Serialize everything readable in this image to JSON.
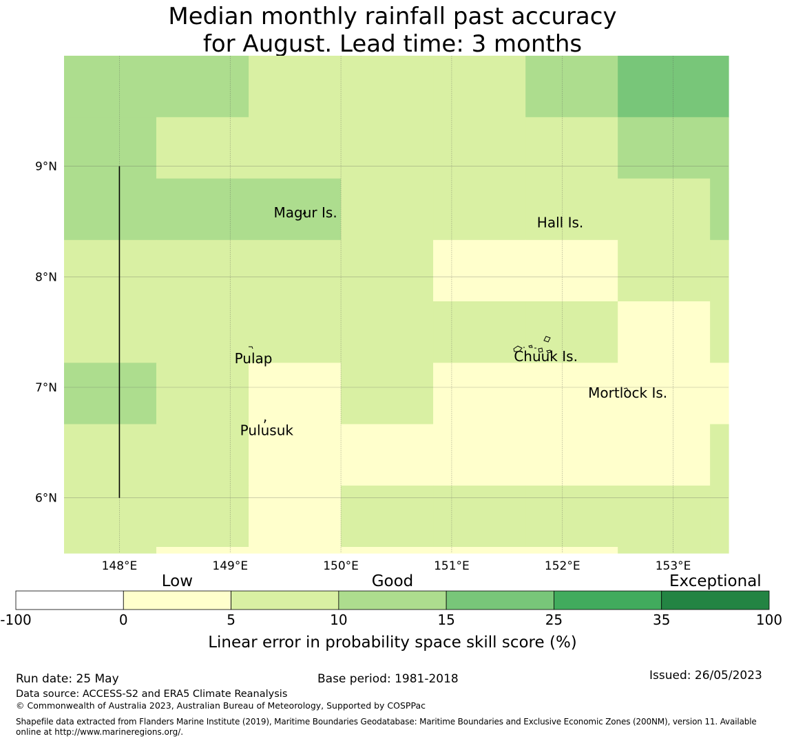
{
  "title": "Median monthly rainfall past accuracy\nfor August. Lead time: 3 months",
  "map": {
    "lon_range": [
      147.5,
      153.5
    ],
    "lat_range": [
      5.5,
      10.0
    ],
    "lon_ticks": [
      {
        "value": 148,
        "label": "148°E"
      },
      {
        "value": 149,
        "label": "149°E"
      },
      {
        "value": 150,
        "label": "150°E"
      },
      {
        "value": 151,
        "label": "151°E"
      },
      {
        "value": 152,
        "label": "152°E"
      },
      {
        "value": 153,
        "label": "153°E"
      }
    ],
    "lat_ticks": [
      {
        "value": 9,
        "label": "9°N"
      },
      {
        "value": 8,
        "label": "8°N"
      },
      {
        "value": 7,
        "label": "7°N"
      },
      {
        "value": 6,
        "label": "6°N"
      }
    ],
    "grid_lines": true,
    "cell_lon_edges": [
      147.5,
      148.333,
      149.167,
      150.0,
      150.833,
      151.667,
      152.5,
      153.333,
      153.5
    ],
    "cell_lat_edges": [
      10.0,
      9.444,
      8.889,
      8.333,
      7.778,
      7.222,
      6.667,
      6.111,
      5.556,
      5.5
    ],
    "skill_grid_bins": [
      [
        2,
        2,
        1,
        1,
        1,
        2,
        3,
        3
      ],
      [
        2,
        1,
        1,
        1,
        1,
        1,
        2,
        2
      ],
      [
        2,
        2,
        2,
        1,
        1,
        1,
        1,
        2
      ],
      [
        1,
        1,
        1,
        1,
        0,
        0,
        1,
        1
      ],
      [
        1,
        1,
        1,
        1,
        1,
        1,
        0,
        1
      ],
      [
        2,
        1,
        0,
        1,
        0,
        0,
        0,
        0
      ],
      [
        1,
        1,
        0,
        0,
        0,
        0,
        0,
        1
      ],
      [
        1,
        1,
        0,
        1,
        1,
        1,
        1,
        1
      ],
      [
        1,
        0,
        0,
        0,
        0,
        0,
        1,
        1
      ]
    ],
    "boundary_line": {
      "lon": 148.0,
      "lat_from": 6.0,
      "lat_to": 9.0
    },
    "places": [
      {
        "name": "Magur Is.",
        "lon": 149.68,
        "lat": 8.58
      },
      {
        "name": "Hall Is.",
        "lon": 151.98,
        "lat": 8.49
      },
      {
        "name": "Pulap",
        "lon": 149.21,
        "lat": 7.26
      },
      {
        "name": "Chuuk Is.",
        "lon": 151.85,
        "lat": 7.28
      },
      {
        "name": "Mortlock Is.",
        "lon": 152.59,
        "lat": 6.95
      },
      {
        "name": "Pulusuk",
        "lon": 149.33,
        "lat": 6.61
      }
    ]
  },
  "legend": {
    "bins": [
      "-100",
      "0",
      "5",
      "10",
      "15",
      "25",
      "35",
      "100"
    ],
    "colors": [
      "#ffffff",
      "#ffffcc",
      "#d9f0a3",
      "#addd8e",
      "#78c679",
      "#41ab5d",
      "#238443"
    ],
    "category_labels": [
      {
        "label": "Low",
        "bin_position": 1.5
      },
      {
        "label": "Good",
        "bin_position": 3.5
      },
      {
        "label": "Exceptional",
        "bin_position": 6.5
      }
    ],
    "axis_label": "Linear error in probability space skill score (%)"
  },
  "footer": {
    "run_date": "Run date: 25 May",
    "base_period": "Base period: 1981-2018",
    "issued": "Issued: 26/05/2023",
    "data_source": "Data source: ACCESS-S2 and ERA5 Climate Reanalysis",
    "copyright": "© Commonwealth of Australia 2023, Australian Bureau of Meteorology, Supported by COSPPac",
    "shapefile_line1": "Shapefile data extracted from Flanders Marine Institute (2019), Maritime Boundaries Geodatabase: Maritime Boundaries and Exclusive Economic Zones (200NM), version 11. Available",
    "shapefile_line2": "online at http://www.marineregions.org/."
  }
}
